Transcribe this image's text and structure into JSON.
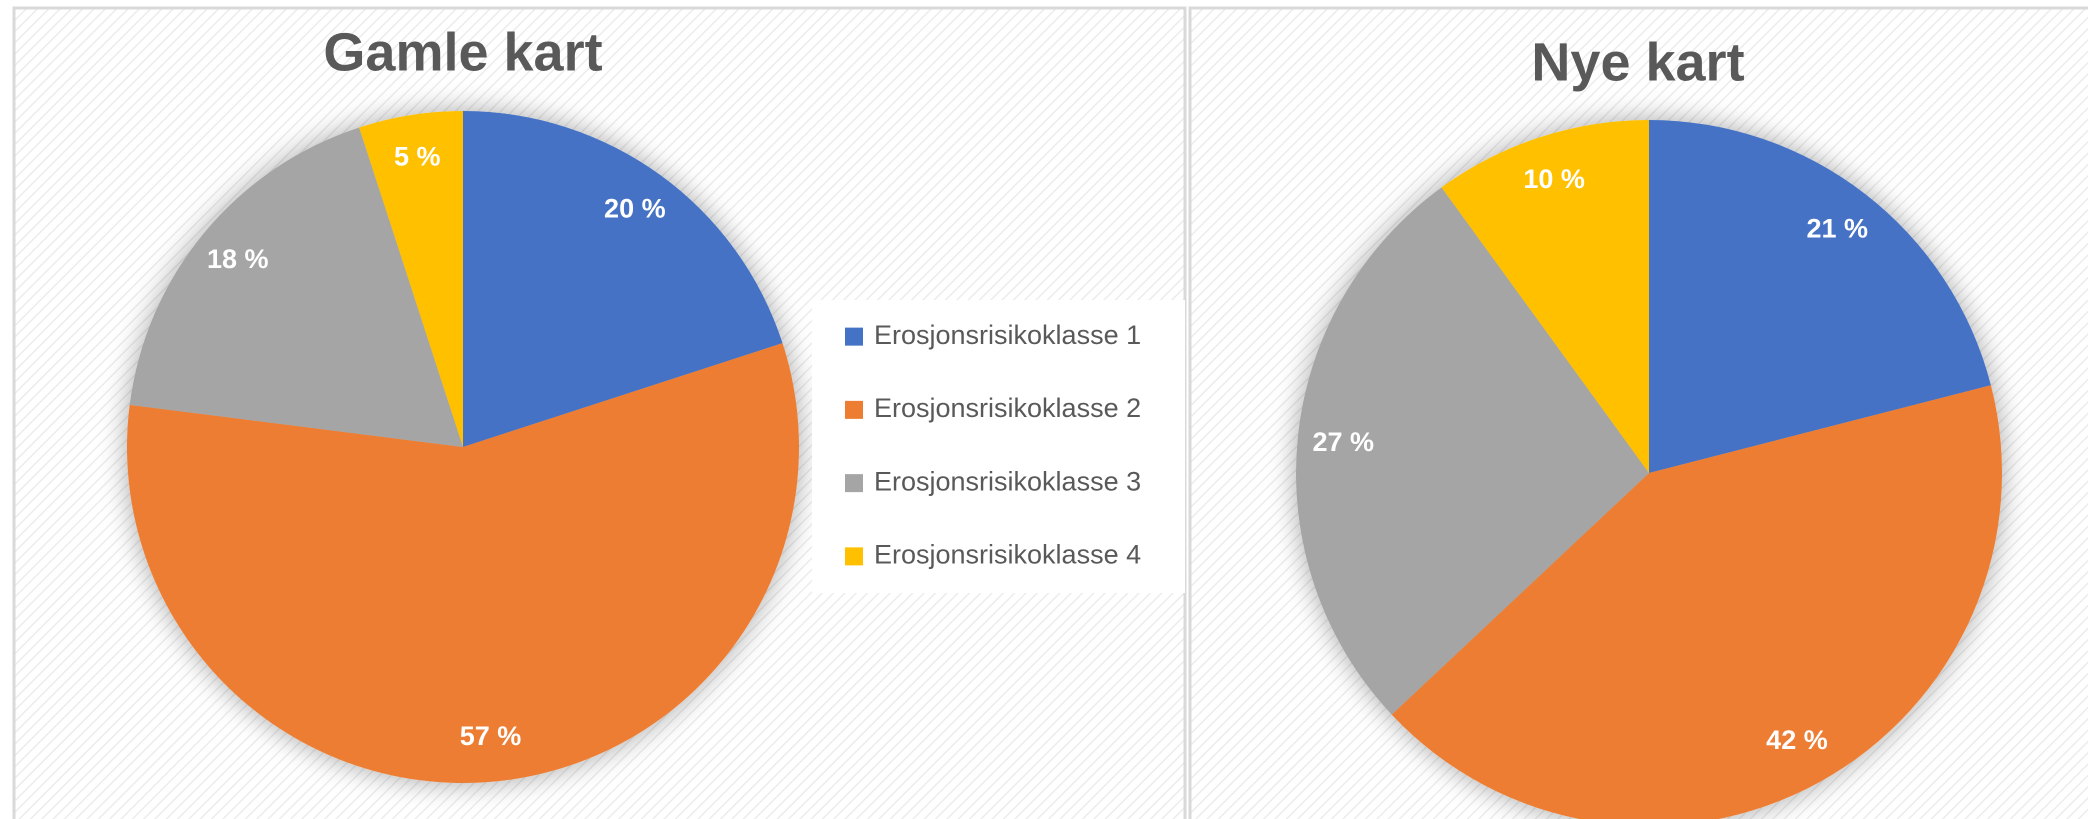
{
  "chart_data": [
    {
      "type": "pie",
      "title": "Gamle kart",
      "categories": [
        "Erosjonsrisikoklasse 1",
        "Erosjonsrisikoklasse 2",
        "Erosjonsrisikoklasse 3",
        "Erosjonsrisikoklasse 4"
      ],
      "values": [
        20,
        57,
        18,
        5
      ],
      "value_labels": [
        "20 %",
        "57 %",
        "18 %",
        "5 %"
      ],
      "colors": [
        "#4472c4",
        "#ed7d31",
        "#a5a5a5",
        "#ffc000"
      ],
      "legend": "right"
    },
    {
      "type": "pie",
      "title": "Nye kart",
      "values": [
        21,
        42,
        27,
        10
      ],
      "value_labels": [
        "21 %",
        "42 %",
        "27 %",
        "10 %"
      ],
      "colors": [
        "#4472c4",
        "#ed7d31",
        "#a5a5a5",
        "#ffc000"
      ]
    }
  ]
}
